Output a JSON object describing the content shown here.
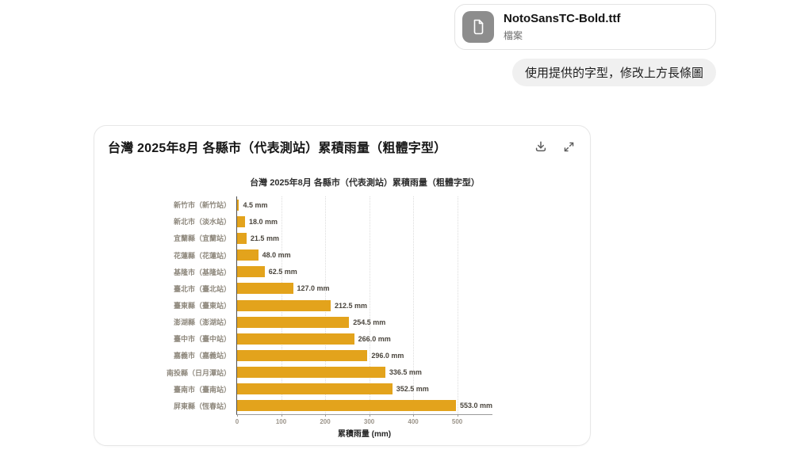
{
  "attachment": {
    "filename": "NotoSansTC-Bold.ttf",
    "type_label": "檔案"
  },
  "user_message": {
    "text": "使用提供的字型，修改上方長條圖"
  },
  "artifact": {
    "title": "台灣 2025年8月 各縣市（代表測站）累積雨量（粗體字型）"
  },
  "chart_data": {
    "type": "bar",
    "orientation": "horizontal",
    "title": "台灣 2025年8月 各縣市（代表測站）累積雨量（粗體字型）",
    "categories": [
      "新竹市（新竹站）",
      "新北市（淡水站）",
      "宜蘭縣（宜蘭站）",
      "花蓮縣（花蓮站）",
      "基隆市（基隆站）",
      "臺北市（臺北站）",
      "臺東縣（臺東站）",
      "澎湖縣（澎湖站）",
      "臺中市（臺中站）",
      "嘉義市（嘉義站）",
      "南投縣（日月潭站）",
      "臺南市（臺南站）",
      "屏東縣（恆春站）"
    ],
    "values": [
      4.5,
      18.0,
      21.5,
      48.0,
      62.5,
      127.0,
      212.5,
      254.5,
      266.0,
      296.0,
      336.5,
      352.5,
      553.0
    ],
    "value_labels": [
      "4.5 mm",
      "18.0 mm",
      "21.5 mm",
      "48.0 mm",
      "62.5 mm",
      "127.0 mm",
      "212.5 mm",
      "254.5 mm",
      "266.0 mm",
      "296.0 mm",
      "336.5 mm",
      "352.5 mm",
      "553.0 mm"
    ],
    "xlabel": "累積雨量 (mm)",
    "xticks": [
      0,
      100,
      200,
      300,
      400,
      500
    ],
    "xlim": [
      0,
      580
    ],
    "bar_color": "#e3a31c",
    "grid": "vertical-dotted",
    "legend": "none"
  }
}
